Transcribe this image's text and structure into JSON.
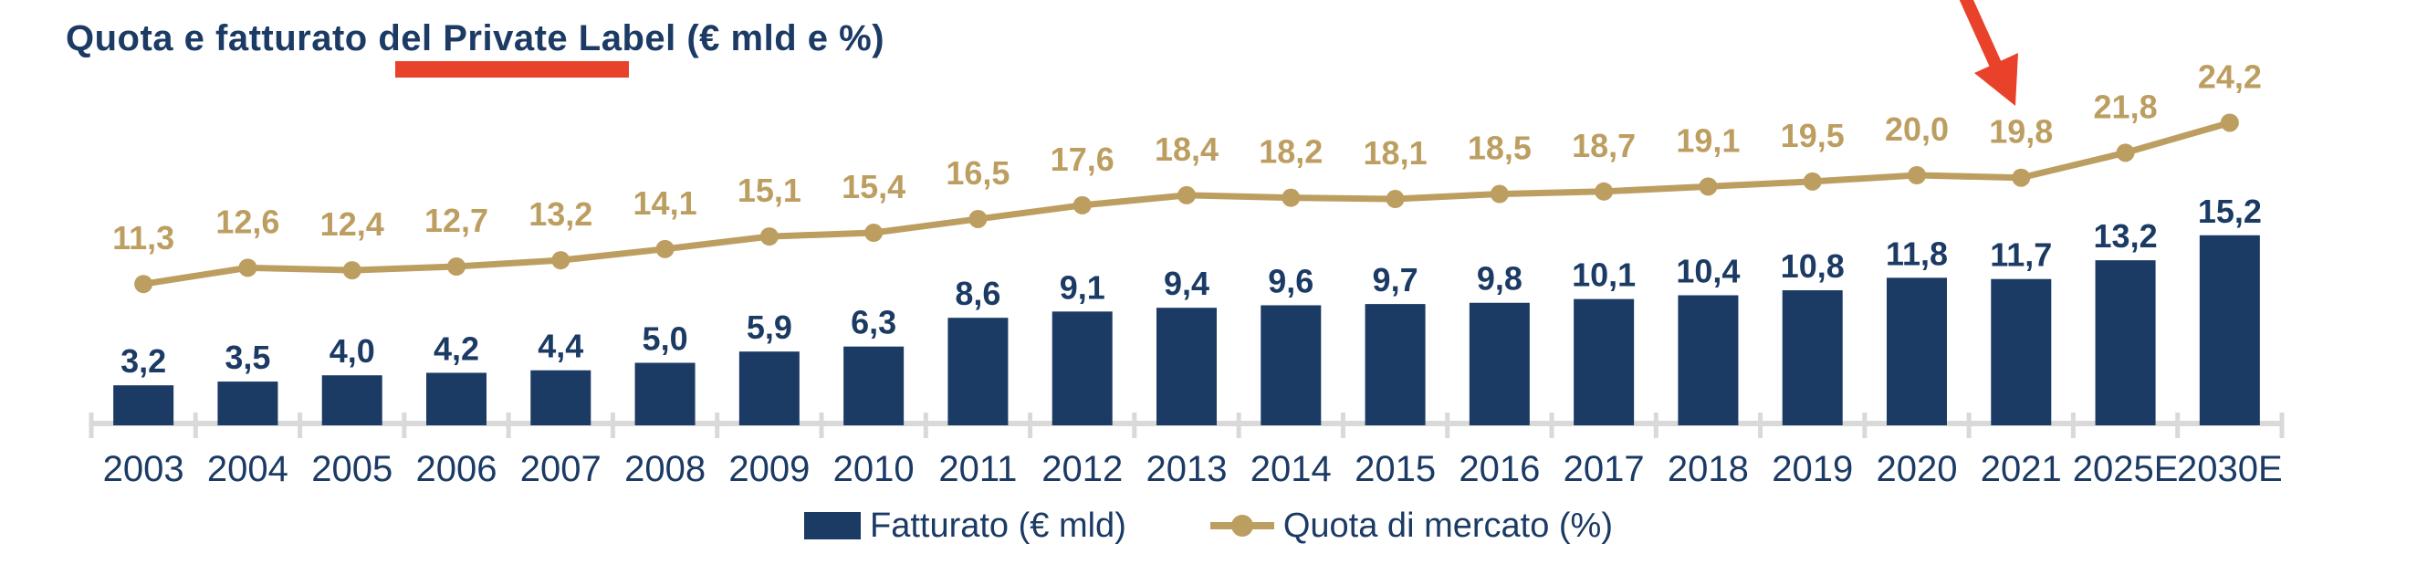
{
  "title": "Quota e fatturato del Private Label (€ mld e %)",
  "title_highlight": {
    "underlined_text": "Private Label",
    "color": "#E8432A"
  },
  "colors": {
    "navy": "#1B3A64",
    "gold": "#BD9E61",
    "red": "#E8432A",
    "axis": "#D9D9D9",
    "background": "#FFFFFF"
  },
  "legend": {
    "items": [
      {
        "label": "Fatturato (€ mld)",
        "marker": "navy-square"
      },
      {
        "label": "Quota di mercato (%)",
        "marker": "gold-line-dot"
      }
    ]
  },
  "chart_data": {
    "type": "combo-bar-line",
    "title": "Quota e fatturato del Private Label (€ mld e %)",
    "categories": [
      "2003",
      "2004",
      "2005",
      "2006",
      "2007",
      "2008",
      "2009",
      "2010",
      "2011",
      "2012",
      "2013",
      "2014",
      "2015",
      "2016",
      "2017",
      "2018",
      "2019",
      "2020",
      "2021",
      "2025E",
      "2030E"
    ],
    "series": [
      {
        "name": "Fatturato (€ mld)",
        "type": "bar",
        "color": "#1B3A64",
        "values": [
          3.2,
          3.5,
          4.0,
          4.2,
          4.4,
          5.0,
          5.9,
          6.3,
          8.6,
          9.1,
          9.4,
          9.6,
          9.7,
          9.8,
          10.1,
          10.4,
          10.8,
          11.8,
          11.7,
          13.2,
          15.2
        ],
        "labels": [
          "3,2",
          "3,5",
          "4,0",
          "4,2",
          "4,4",
          "5,0",
          "5,9",
          "6,3",
          "8,6",
          "9,1",
          "9,4",
          "9,6",
          "9,7",
          "9,8",
          "10,1",
          "10,4",
          "10,8",
          "11,8",
          "11,7",
          "13,2",
          "15,2"
        ]
      },
      {
        "name": "Quota di mercato (%)",
        "type": "line",
        "color": "#BD9E61",
        "values": [
          11.3,
          12.6,
          12.4,
          12.7,
          13.2,
          14.1,
          15.1,
          15.4,
          16.5,
          17.6,
          18.4,
          18.2,
          18.1,
          18.5,
          18.7,
          19.1,
          19.5,
          20.0,
          19.8,
          21.8,
          24.2
        ],
        "labels": [
          "11,3",
          "12,6",
          "12,4",
          "12,7",
          "13,2",
          "14,1",
          "15,1",
          "15,4",
          "16,5",
          "17,6",
          "18,4",
          "18,2",
          "18,1",
          "18,5",
          "18,7",
          "19,1",
          "19,5",
          "20,0",
          "19,8",
          "21,8",
          "24,2"
        ]
      }
    ],
    "value_axis": {
      "min": 0,
      "implied_max": 25,
      "gridlines": false,
      "value_labels_on_points": true
    },
    "annotations": [
      {
        "type": "arrow",
        "color": "#E8432A",
        "points_to": {
          "category": "2021",
          "series": "Quota di mercato (%)"
        }
      }
    ],
    "legend_position": "bottom-center"
  }
}
